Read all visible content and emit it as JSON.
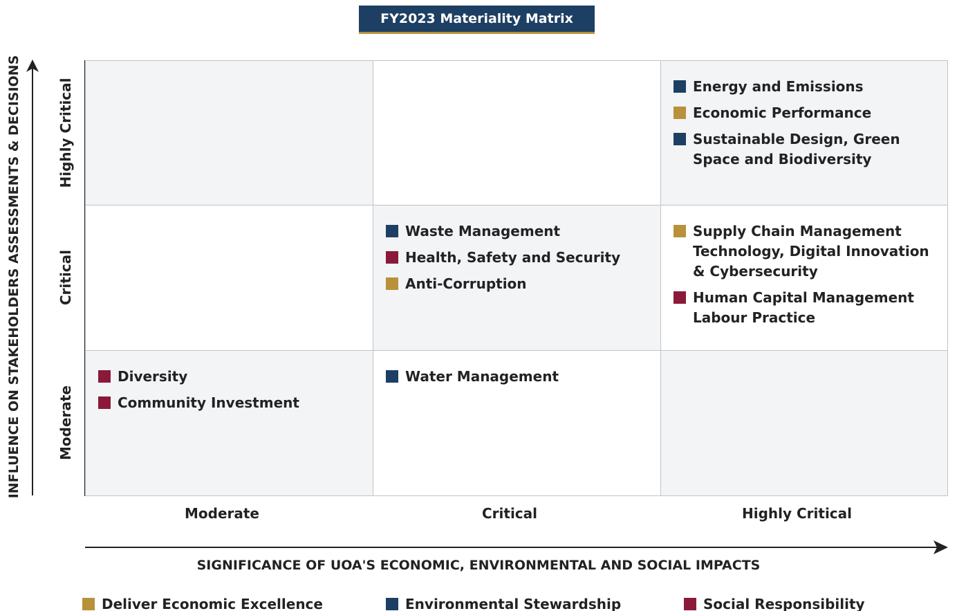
{
  "title": "FY2023 Materiality Matrix",
  "y_axis_label": "INFLUENCE ON STAKEHOLDERS ASSESSMENTS & DECISIONS",
  "x_axis_label": "SIGNIFICANCE OF UOA'S ECONOMIC, ENVIRONMENTAL AND SOCIAL IMPACTS",
  "rows": [
    "Highly Critical",
    "Critical",
    "Moderate"
  ],
  "columns": [
    "Moderate",
    "Critical",
    "Highly Critical"
  ],
  "cells": [
    [
      [],
      [],
      [
        {
          "color": "#1d3f63",
          "lines": [
            "Energy and Emissions"
          ]
        },
        {
          "color": "#b8913a",
          "lines": [
            "Economic Performance"
          ]
        },
        {
          "color": "#1d3f63",
          "lines": [
            "Sustainable Design, Green",
            "Space and Biodiversity"
          ]
        }
      ]
    ],
    [
      [],
      [
        {
          "color": "#1d3f63",
          "lines": [
            "Waste Management"
          ]
        },
        {
          "color": "#8b1a3a",
          "lines": [
            "Health, Safety and Security"
          ]
        },
        {
          "color": "#b8913a",
          "lines": [
            "Anti-Corruption"
          ]
        }
      ],
      [
        {
          "color": "#b8913a",
          "lines": [
            "Supply Chain Management",
            "Technology, Digital Innovation",
            "& Cybersecurity"
          ]
        },
        {
          "color": "#8b1a3a",
          "lines": [
            "Human Capital Management",
            "Labour Practice"
          ]
        }
      ]
    ],
    [
      [
        {
          "color": "#8b1a3a",
          "lines": [
            "Diversity"
          ]
        },
        {
          "color": "#8b1a3a",
          "lines": [
            "Community Investment"
          ]
        }
      ],
      [
        {
          "color": "#1d3f63",
          "lines": [
            "Water Management"
          ]
        }
      ],
      []
    ]
  ],
  "legend": [
    {
      "name": "Deliver Economic Excellence",
      "color": "#b8913a"
    },
    {
      "name": "Environmental Stewardship",
      "color": "#1d3f63"
    },
    {
      "name": "Social Responsibility",
      "color": "#8b1a3a"
    }
  ]
}
